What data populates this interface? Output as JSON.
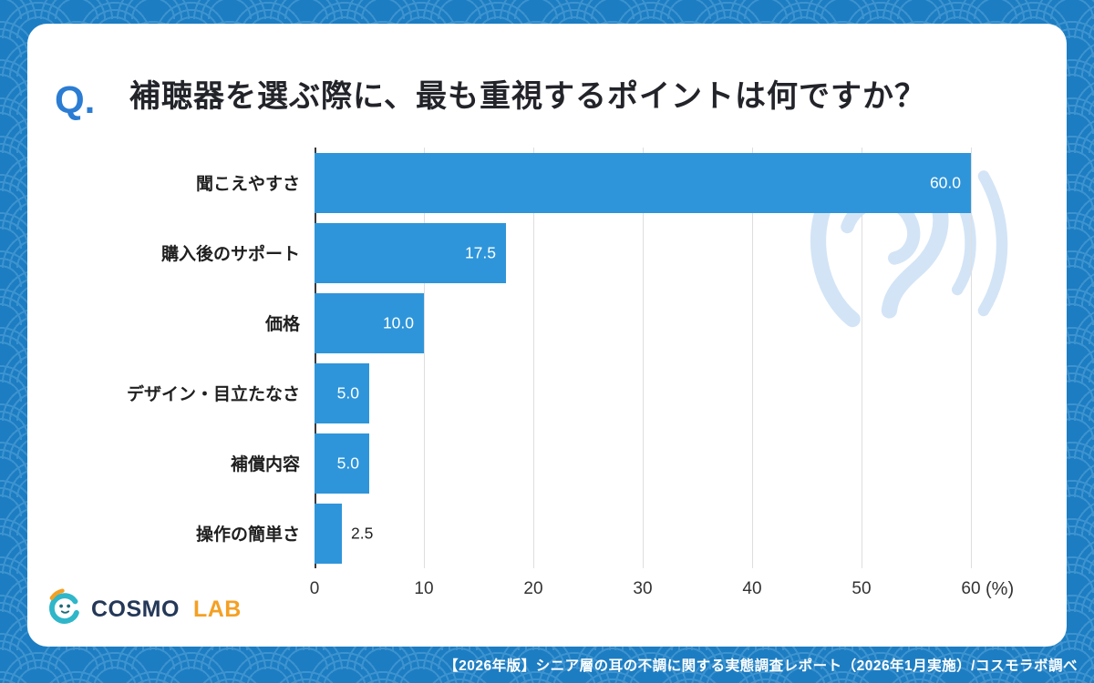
{
  "question": {
    "prefix": "Q.",
    "title": "補聴器を選ぶ際に、最も重視するポイントは何ですか？"
  },
  "chart_data": {
    "type": "bar",
    "orientation": "horizontal",
    "categories": [
      "聞こえやすさ",
      "購入後のサポート",
      "価格",
      "デザイン・目立たなさ",
      "補償内容",
      "操作の簡単さ"
    ],
    "values": [
      60.0,
      17.5,
      10.0,
      5.0,
      5.0,
      2.5
    ],
    "value_labels": [
      "60.0",
      "17.5",
      "10.0",
      "5.0",
      "5.0",
      "2.5"
    ],
    "xlim": [
      0,
      60
    ],
    "ticks": [
      0,
      10,
      20,
      30,
      40,
      50,
      60
    ],
    "unit_label": "(%)",
    "bar_color": "#2e95da",
    "grid": true,
    "title": "補聴器を選ぶ際に、最も重視するポイントは何ですか？",
    "xlabel": "(%)",
    "ylabel": ""
  },
  "logo": {
    "cosmo": "COSMO",
    "lab": "LAB"
  },
  "footer": {
    "text": "【2026年版】シニア層の耳の不調に関する実態調査レポート（2026年1月実施）/コスモラボ調べ"
  },
  "colors": {
    "background_blue": "#1d7dc2",
    "wave_line_blue": "#3d93cf",
    "bar_blue": "#2e95da",
    "q_accent_blue": "#2b7cd3",
    "ear_light_blue": "#cfe2f6",
    "logo_teal": "#2fb6c9",
    "logo_orange": "#f4a024",
    "logo_navy": "#253858"
  }
}
